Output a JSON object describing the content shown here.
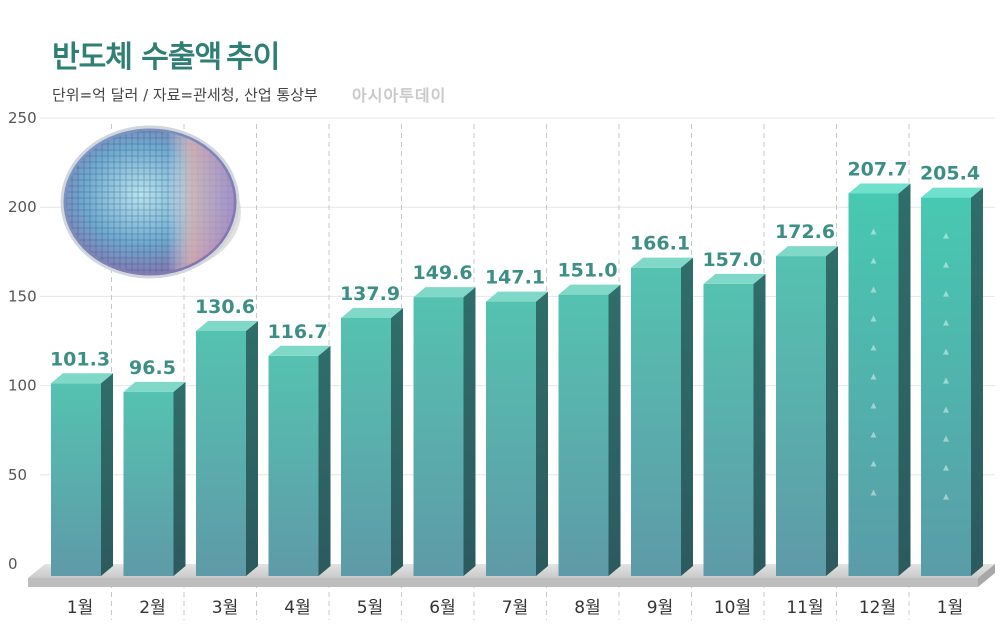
{
  "header": {
    "title_bold": "반도체 수출액",
    "title_light": "추이",
    "subtitle": "단위=억 달러 / 자료=관세청, 산업 통상부",
    "brand": "아시아투데이"
  },
  "colors": {
    "bar_front_top": "#55c2b0",
    "bar_front_bottom": "#5e9aa8",
    "bar_side": "#2f6e6a",
    "bar_top": "#7fd8c8",
    "highlight_front_top": "#47c9b1",
    "value_text": "#3d8f85",
    "title": "#2f7f76"
  },
  "chart_data": {
    "type": "bar",
    "title": "반도체 수출액 추이",
    "categories": [
      "1월",
      "2월",
      "3월",
      "4월",
      "5월",
      "6월",
      "7월",
      "8월",
      "9월",
      "10월",
      "11월",
      "12월",
      "1월"
    ],
    "values": [
      101.3,
      96.5,
      130.6,
      116.7,
      137.9,
      149.6,
      147.1,
      151.0,
      166.1,
      157.0,
      172.6,
      207.7,
      205.4
    ],
    "value_labels": [
      "101.3",
      "96.5",
      "130.6",
      "116.7",
      "137.9",
      "149.6",
      "147.1",
      "151.0",
      "166.1",
      "157.0",
      "172.6",
      "207.7",
      "205.4"
    ],
    "yticks": [
      "0",
      "50",
      "100",
      "150",
      "200",
      "250"
    ],
    "ylim": [
      0,
      250
    ],
    "highlighted": [
      11,
      12
    ],
    "grid": true,
    "xlabel": "",
    "ylabel": ""
  }
}
